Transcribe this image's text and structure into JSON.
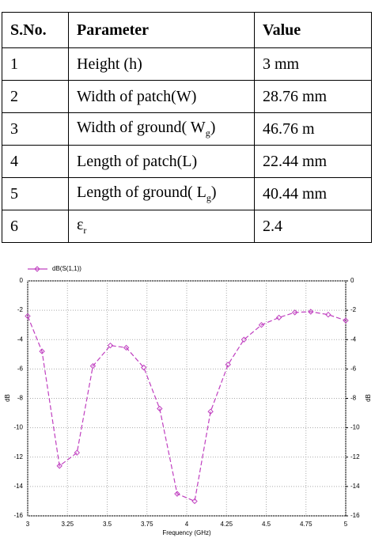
{
  "table": {
    "header": [
      "S.No.",
      "Parameter",
      "Value"
    ],
    "rows": [
      [
        "1",
        {
          "text": "Height (h)"
        },
        "3 mm"
      ],
      [
        "2",
        {
          "text": "Width of patch(W)"
        },
        "28.76 mm"
      ],
      [
        "3",
        {
          "text": "Width of ground( W",
          "sub": "g",
          "tail": ")"
        },
        "46.76 m"
      ],
      [
        "4",
        {
          "text": "Length of patch(L)"
        },
        "22.44 mm"
      ],
      [
        "5",
        {
          "text": "Length of ground( L",
          "sub": "g",
          "tail": ")"
        },
        "40.44 mm"
      ],
      [
        "6",
        {
          "text": "ε",
          "sub": "r"
        },
        "2.4"
      ]
    ]
  },
  "chart_data": {
    "type": "line",
    "xlabel": "Frequency (GHz)",
    "ylabel": "dB",
    "y2label": "dB",
    "x": [
      3,
      3.09,
      3.2,
      3.31,
      3.41,
      3.52,
      3.62,
      3.73,
      3.83,
      3.94,
      4.05,
      4.15,
      4.26,
      4.36,
      4.47,
      4.58,
      4.68,
      4.78,
      4.89,
      5
    ],
    "series": [
      {
        "name": "dB(S(1,1))",
        "color": "#c040c0",
        "values": [
          -2.4,
          -4.8,
          -12.6,
          -11.7,
          -5.8,
          -4.4,
          -4.55,
          -5.9,
          -8.7,
          -14.5,
          -15,
          -8.9,
          -5.7,
          -4.0,
          -3.0,
          -2.5,
          -2.15,
          -2.1,
          -2.3,
          -2.7
        ]
      }
    ],
    "xlim": [
      3,
      5
    ],
    "xticks": [
      3,
      3.25,
      3.5,
      3.75,
      4,
      4.25,
      4.5,
      4.75,
      5
    ],
    "ylim": [
      -16,
      0
    ],
    "yticks": [
      -16,
      -14,
      -12,
      -10,
      -8,
      -6,
      -4,
      -2,
      0
    ],
    "y2lim": [
      -16,
      0
    ],
    "y2ticks": [
      -16,
      -14,
      -12,
      -10,
      -8,
      -6,
      -4,
      -2,
      0
    ],
    "grid": true
  }
}
